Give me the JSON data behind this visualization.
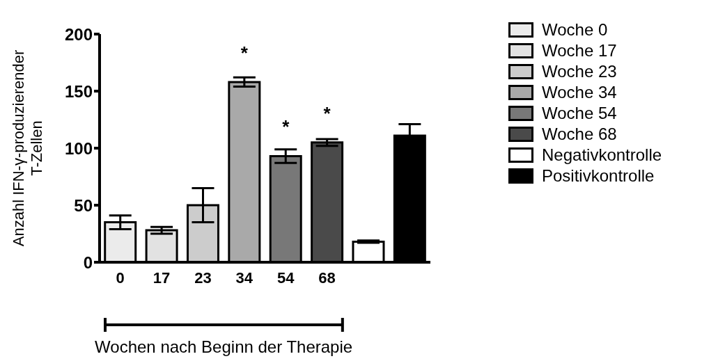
{
  "chart_data": {
    "type": "bar",
    "ylabel": "Anzahl IFN-γ-produzierender T-Zellen",
    "xlabel": "Wochen nach Beginn der Therapie",
    "categories": [
      "0",
      "17",
      "23",
      "34",
      "54",
      "68",
      null,
      null
    ],
    "stacked": true,
    "series": [
      {
        "name": "Woche 0",
        "color": "#ebebeb",
        "values": [
          35,
          null,
          null,
          null,
          null,
          null,
          null,
          null
        ],
        "errors": [
          6,
          null,
          null,
          null,
          null,
          null,
          null,
          null
        ]
      },
      {
        "name": "Woche 17",
        "color": "#e2e2e2",
        "values": [
          null,
          28,
          null,
          null,
          null,
          null,
          null,
          null
        ],
        "errors": [
          null,
          3,
          null,
          null,
          null,
          null,
          null,
          null
        ]
      },
      {
        "name": "Woche 23",
        "color": "#cccccc",
        "values": [
          null,
          null,
          50,
          null,
          null,
          null,
          null,
          null
        ],
        "errors": [
          null,
          null,
          15,
          null,
          null,
          null,
          null,
          null
        ]
      },
      {
        "name": "Woche 34",
        "color": "#a9a9a9",
        "values": [
          null,
          null,
          null,
          158,
          null,
          null,
          null,
          null
        ],
        "errors": [
          null,
          null,
          null,
          4,
          null,
          null,
          null,
          null
        ]
      },
      {
        "name": "Woche 54",
        "color": "#787878",
        "values": [
          null,
          null,
          null,
          null,
          93,
          null,
          null,
          null
        ],
        "errors": [
          null,
          null,
          null,
          null,
          6,
          null,
          null,
          null
        ]
      },
      {
        "name": "Woche 68",
        "color": "#4a4a4a",
        "values": [
          null,
          null,
          null,
          null,
          null,
          105,
          null,
          null
        ],
        "errors": [
          null,
          null,
          null,
          null,
          null,
          3,
          null,
          null
        ]
      },
      {
        "name": "Negativkontrolle",
        "color": "#ffffff",
        "values": [
          null,
          null,
          null,
          null,
          null,
          null,
          18,
          null
        ],
        "errors": [
          null,
          null,
          null,
          null,
          null,
          null,
          1,
          null
        ]
      },
      {
        "name": "Positivkontrolle",
        "color": "#000000",
        "values": [
          null,
          null,
          null,
          null,
          null,
          null,
          null,
          111
        ],
        "errors": [
          null,
          null,
          null,
          null,
          null,
          null,
          null,
          10
        ]
      }
    ],
    "ylim": [
      0,
      200
    ],
    "yticks": [
      0,
      50,
      100,
      150,
      200
    ],
    "grid": false,
    "legend": "right",
    "annotations": [
      {
        "text": "*",
        "x": "34",
        "y": 158
      },
      {
        "text": "*",
        "x": "54",
        "y": 93
      },
      {
        "text": "*",
        "x": "68",
        "y": 105
      }
    ]
  }
}
